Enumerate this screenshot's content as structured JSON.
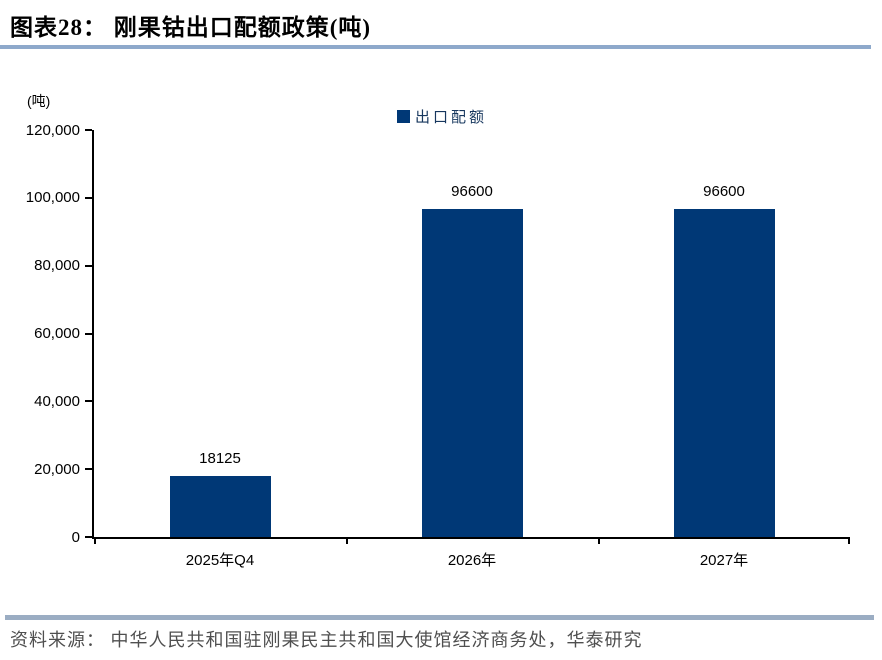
{
  "header": {
    "title": "图表28：  刚果钴出口配额政策(吨)"
  },
  "chart_data": {
    "type": "bar",
    "title": "刚果钴出口配额政策(吨)",
    "unit_label": "(吨)",
    "legend": [
      {
        "name": "出口配额",
        "color": "#003876",
        "marker": "square"
      }
    ],
    "legend_position": "top-center",
    "categories": [
      "2025年Q4",
      "2026年",
      "2027年"
    ],
    "values": [
      18125,
      96600,
      96600
    ],
    "value_labels": [
      "18125",
      "96600",
      "96600"
    ],
    "xlabel": "",
    "ylabel": "(吨)",
    "ylim": [
      0,
      120000
    ],
    "y_ticks": [
      0,
      20000,
      40000,
      60000,
      80000,
      100000,
      120000
    ],
    "y_tick_labels": [
      "0",
      "20,000",
      "40,000",
      "60,000",
      "80,000",
      "100,000",
      "120,000"
    ],
    "grid": false,
    "bar_color": "#003876",
    "axis_color": "#000000"
  },
  "footer": {
    "source": "资料来源： 中华人民共和国驻刚果民主共和国大使馆经济商务处，华泰研究"
  },
  "colors": {
    "title_underline": "#8ea9cb",
    "footer_divider": "#9badc3",
    "bar": "#003876",
    "source_text": "#4f4f4f"
  }
}
